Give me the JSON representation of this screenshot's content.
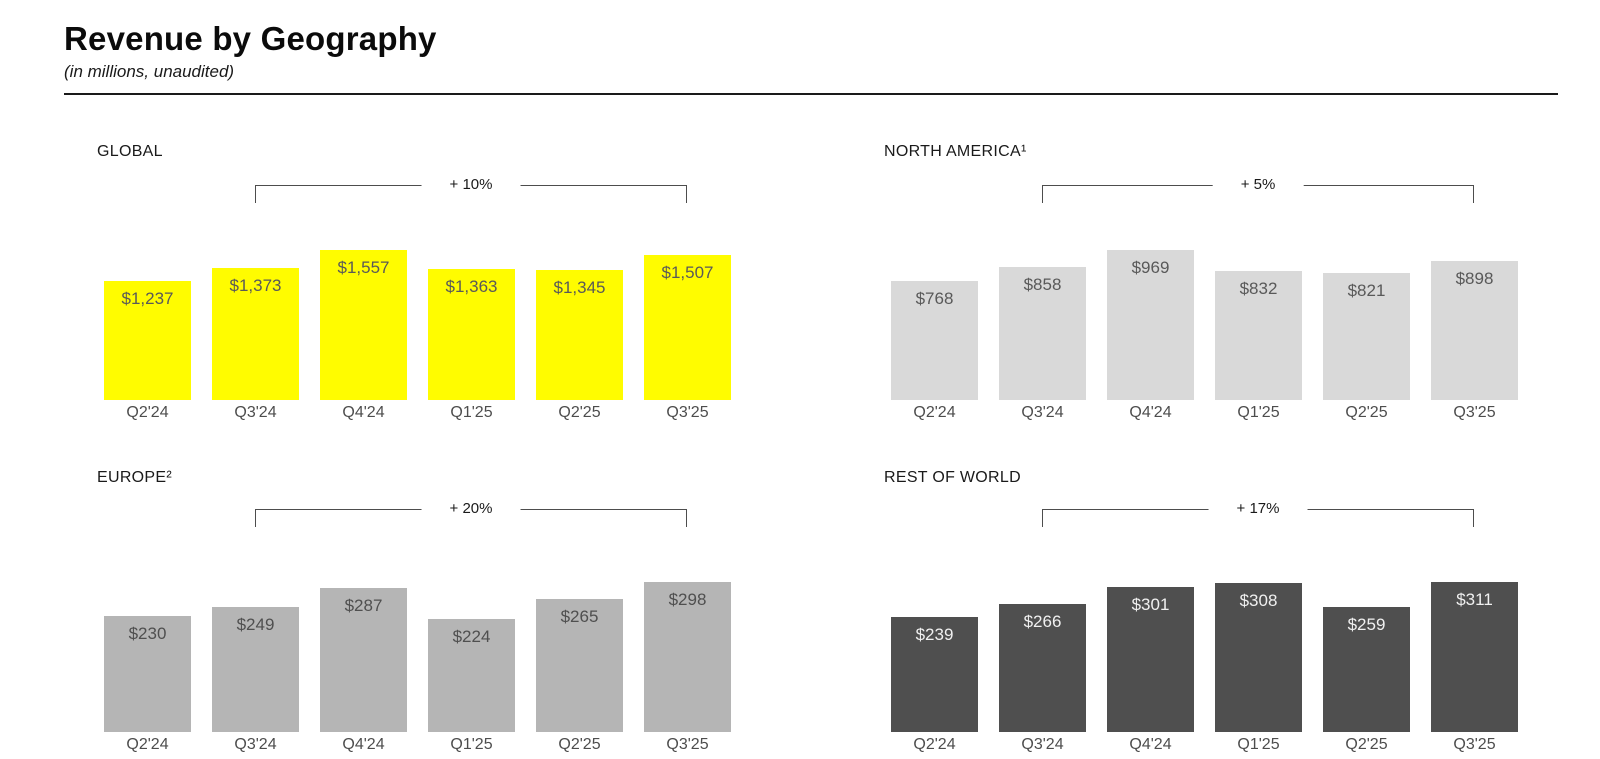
{
  "header": {
    "title": "Revenue by Geography",
    "subtitle": "(in millions, unaudited)"
  },
  "chart_data": [
    {
      "type": "bar",
      "title": "GLOBAL",
      "categories": [
        "Q2'24",
        "Q3'24",
        "Q4'24",
        "Q1'25",
        "Q2'25",
        "Q3'25"
      ],
      "values": [
        1237,
        1373,
        1557,
        1363,
        1345,
        1507
      ],
      "value_labels": [
        "$1,237",
        "$1,373",
        "$1,557",
        "$1,363",
        "$1,345",
        "$1,507"
      ],
      "growth_label": "+ 10%",
      "comparison": {
        "from": "Q3'24",
        "to": "Q3'25",
        "change": "+ 10%"
      },
      "unit": "USD millions",
      "ylim": [
        0,
        1557
      ],
      "bar_color": "#FFFC00",
      "value_label_color": "#595959"
    },
    {
      "type": "bar",
      "title": "NORTH AMERICA¹",
      "categories": [
        "Q2'24",
        "Q3'24",
        "Q4'24",
        "Q1'25",
        "Q2'25",
        "Q3'25"
      ],
      "values": [
        768,
        858,
        969,
        832,
        821,
        898
      ],
      "value_labels": [
        "$768",
        "$858",
        "$969",
        "$832",
        "$821",
        "$898"
      ],
      "growth_label": "+ 5%",
      "comparison": {
        "from": "Q3'24",
        "to": "Q3'25",
        "change": "+ 5%"
      },
      "unit": "USD millions",
      "ylim": [
        0,
        969
      ],
      "bar_color": "#D9D9D9",
      "value_label_color": "#595959"
    },
    {
      "type": "bar",
      "title": "EUROPE²",
      "categories": [
        "Q2'24",
        "Q3'24",
        "Q4'24",
        "Q1'25",
        "Q2'25",
        "Q3'25"
      ],
      "values": [
        230,
        249,
        287,
        224,
        265,
        298
      ],
      "value_labels": [
        "$230",
        "$249",
        "$287",
        "$224",
        "$265",
        "$298"
      ],
      "growth_label": "+ 20%",
      "comparison": {
        "from": "Q3'24",
        "to": "Q3'25",
        "change": "+ 20%"
      },
      "unit": "USD millions",
      "ylim": [
        0,
        298
      ],
      "bar_color": "#B5B5B5",
      "value_label_color": "#4f4f4f"
    },
    {
      "type": "bar",
      "title": "REST OF WORLD",
      "categories": [
        "Q2'24",
        "Q3'24",
        "Q4'24",
        "Q1'25",
        "Q2'25",
        "Q3'25"
      ],
      "values": [
        239,
        266,
        301,
        308,
        259,
        311
      ],
      "value_labels": [
        "$239",
        "$266",
        "$301",
        "$308",
        "$259",
        "$311"
      ],
      "growth_label": "+ 17%",
      "comparison": {
        "from": "Q3'24",
        "to": "Q3'25",
        "change": "+ 17%"
      },
      "unit": "USD millions",
      "ylim": [
        0,
        311
      ],
      "bar_color": "#4F4F4F",
      "value_label_color": "#F0F0F0"
    }
  ]
}
